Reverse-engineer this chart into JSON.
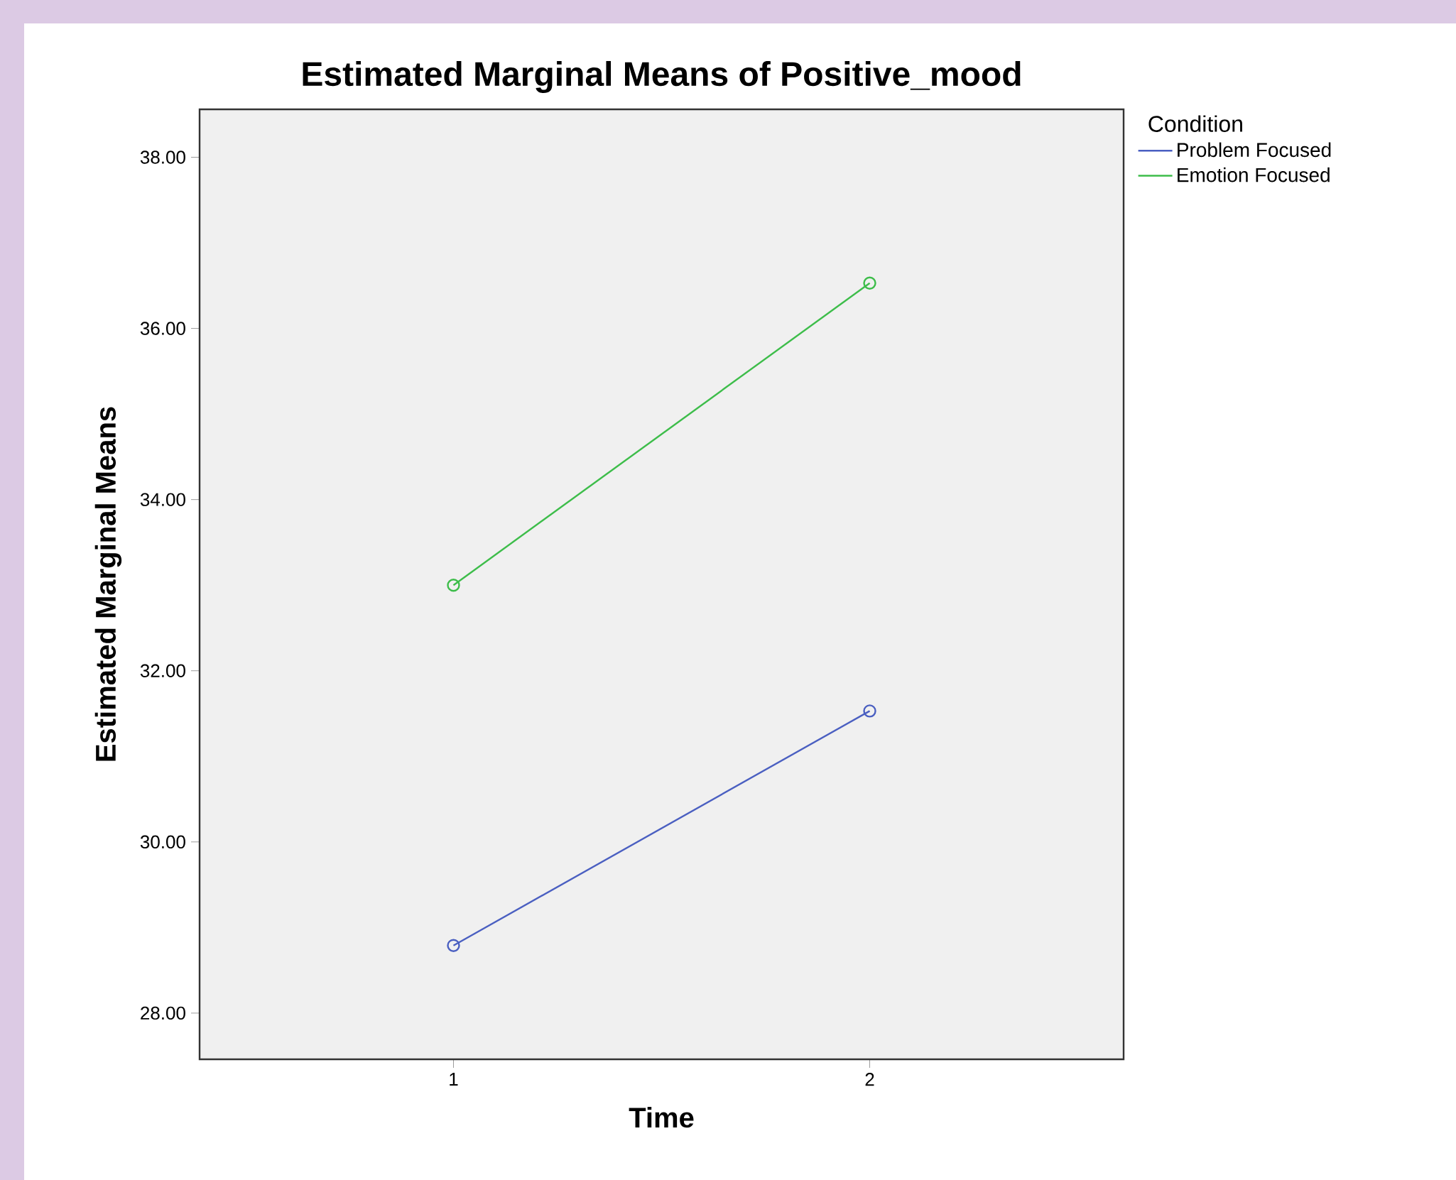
{
  "chart_data": {
    "type": "line",
    "title": "Estimated Marginal Means of Positive_mood",
    "xlabel": "Time",
    "ylabel": "Estimated Marginal Means",
    "legend_title": "Condition",
    "categories": [
      "1",
      "2"
    ],
    "series": [
      {
        "name": "Problem Focused",
        "color": "#4a5fc1",
        "values": [
          28.79,
          31.53
        ]
      },
      {
        "name": "Emotion Focused",
        "color": "#3dbd4a",
        "values": [
          33.0,
          36.53
        ]
      }
    ],
    "ylim": [
      27.46,
      38.56
    ],
    "yticks": [
      {
        "value": 28,
        "label": "28.00"
      },
      {
        "value": 30,
        "label": "30.00"
      },
      {
        "value": 32,
        "label": "32.00"
      },
      {
        "value": 34,
        "label": "34.00"
      },
      {
        "value": 36,
        "label": "36.00"
      },
      {
        "value": 38,
        "label": "38.00"
      }
    ],
    "marker": "circle",
    "line_style": "solid",
    "legend": "top right"
  }
}
